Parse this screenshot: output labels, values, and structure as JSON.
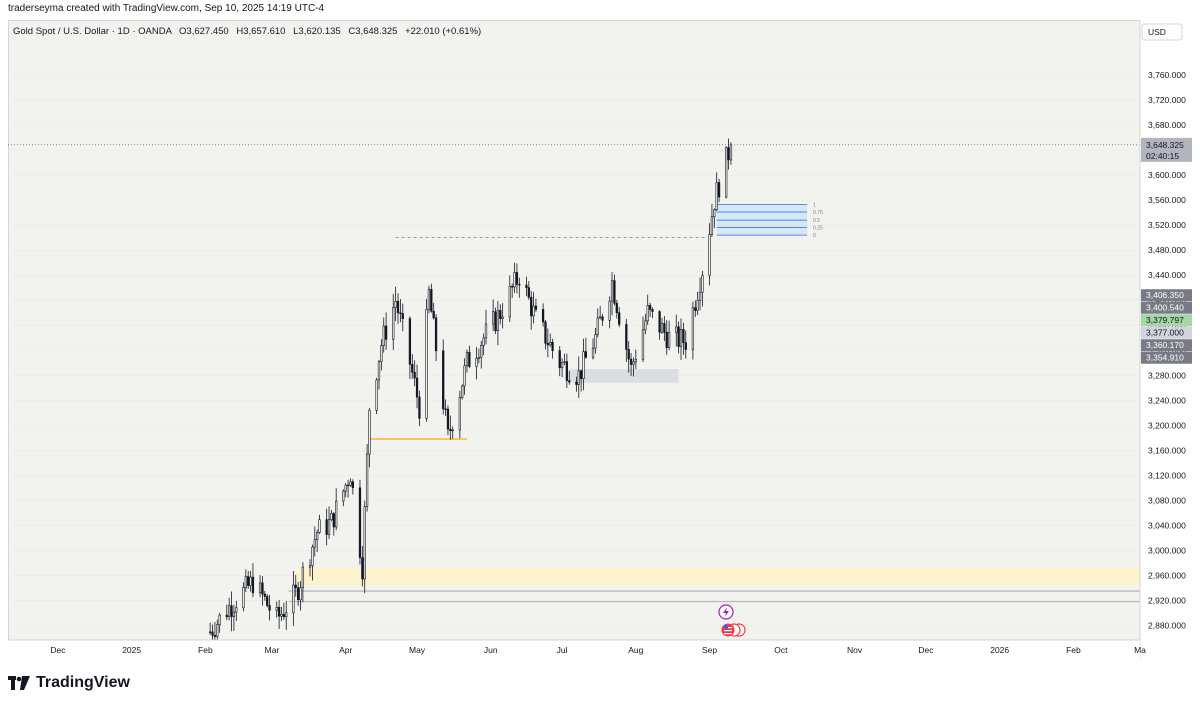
{
  "header": {
    "text": "traderseyma created with TradingView.com, Sep 10, 2025 14:19 UTC-4"
  },
  "legend": {
    "symbol": "Gold Spot / U.S. Dollar · 1D · OANDA",
    "o_label": "O",
    "o": "3,627.450",
    "h_label": "H",
    "h": "3,657.610",
    "l_label": "L",
    "l": "3,620.135",
    "c_label": "C",
    "c": "3,648.325",
    "change": "+22.010 (+0.61%)"
  },
  "currency": "USD",
  "brand": {
    "name": "TradingView"
  },
  "colors": {
    "up": "#131722",
    "down": "#131722",
    "bg": "#f2f3ee",
    "price_label": "#b2b5be",
    "gray_label": "#787b86",
    "green_label": "#a5d6a7",
    "zone": "#fff3c4",
    "fib": "#2962ff",
    "orange": "#ffb74d"
  },
  "chart_data": {
    "type": "candlestick",
    "title": "Gold Spot / U.S. Dollar · 1D · OANDA",
    "ylim": [
      2860,
      3800
    ],
    "y_ticks": [
      2880,
      2920,
      2960,
      3000,
      3040,
      3080,
      3120,
      3160,
      3200,
      3240,
      3280,
      3320,
      3360,
      3400,
      3440,
      3480,
      3520,
      3560,
      3600,
      3640,
      3680,
      3720,
      3760
    ],
    "y_tick_labels": [
      "2,880.000",
      "2,920.000",
      "2,960.000",
      "3,000.000",
      "3,040.000",
      "3,080.000",
      "3,120.000",
      "3,160.000",
      "3,200.000",
      "3,240.000",
      "3,280.000",
      "3,320.000",
      "3,360.000",
      "3,400.000",
      "3,440.000",
      "3,480.000",
      "3,520.000",
      "3,560.000",
      "3,600.000",
      "3,640.000",
      "3,680.000",
      "3,720.000",
      "3,760.000"
    ],
    "x_labels": [
      {
        "label": "Dec",
        "date": "2024-12-01"
      },
      {
        "label": "2025",
        "date": "2025-01-01"
      },
      {
        "label": "Feb",
        "date": "2025-02-01"
      },
      {
        "label": "Mar",
        "date": "2025-03-01"
      },
      {
        "label": "Apr",
        "date": "2025-04-01"
      },
      {
        "label": "May",
        "date": "2025-05-01"
      },
      {
        "label": "Jun",
        "date": "2025-06-01"
      },
      {
        "label": "Jul",
        "date": "2025-07-01"
      },
      {
        "label": "Aug",
        "date": "2025-08-01"
      },
      {
        "label": "Sep",
        "date": "2025-09-01"
      },
      {
        "label": "Oct",
        "date": "2025-10-01"
      },
      {
        "label": "Nov",
        "date": "2025-11-01"
      },
      {
        "label": "Dec",
        "date": "2025-12-01"
      },
      {
        "label": "2026",
        "date": "2026-01-01"
      },
      {
        "label": "Feb",
        "date": "2026-02-01"
      },
      {
        "label": "Ma",
        "date": "2026-03-01"
      }
    ],
    "xlim": [
      "2024-11-10",
      "2026-03-01"
    ],
    "waypoints": [
      [
        "2025-02-03",
        2870
      ],
      [
        "2025-02-10",
        2905
      ],
      [
        "2025-02-21",
        2950
      ],
      [
        "2025-03-03",
        2890
      ],
      [
        "2025-03-11",
        2930
      ],
      [
        "2025-03-20",
        3030
      ],
      [
        "2025-03-26",
        3045
      ],
      [
        "2025-04-03",
        3125
      ],
      [
        "2025-04-08",
        2975
      ],
      [
        "2025-04-11",
        3230
      ],
      [
        "2025-04-16",
        3330
      ],
      [
        "2025-04-22",
        3400
      ],
      [
        "2025-04-28",
        3300
      ],
      [
        "2025-05-02",
        3230
      ],
      [
        "2025-05-06",
        3410
      ],
      [
        "2025-05-14",
        3180
      ],
      [
        "2025-05-22",
        3300
      ],
      [
        "2025-06-05",
        3380
      ],
      [
        "2025-06-13",
        3440
      ],
      [
        "2025-06-20",
        3370
      ],
      [
        "2025-06-30",
        3300
      ],
      [
        "2025-07-08",
        3280
      ],
      [
        "2025-07-15",
        3340
      ],
      [
        "2025-07-22",
        3430
      ],
      [
        "2025-07-30",
        3290
      ],
      [
        "2025-08-06",
        3380
      ],
      [
        "2025-08-15",
        3340
      ],
      [
        "2025-08-22",
        3335
      ],
      [
        "2025-08-29",
        3450
      ],
      [
        "2025-09-03",
        3560
      ],
      [
        "2025-09-10",
        3648.325
      ]
    ],
    "last_price": {
      "value": 3648.325,
      "label": "3,648.325",
      "countdown": "02:40:15"
    },
    "price_labels": [
      {
        "value": 3406.35,
        "label": "3,406.350",
        "style": "dark"
      },
      {
        "value": 3400.54,
        "label": "3,400.540",
        "style": "dark"
      },
      {
        "value": 3379.797,
        "label": "3,379.797",
        "style": "green"
      },
      {
        "value": 3377.0,
        "label": "3,377.000",
        "style": "light"
      },
      {
        "value": 3360.17,
        "label": "3,360.170",
        "style": "dark"
      },
      {
        "value": 3354.91,
        "label": "3,354.910",
        "style": "dark"
      }
    ],
    "fib_levels": [
      {
        "label": "1",
        "value": 3553
      },
      {
        "label": "0.75",
        "value": 3541
      },
      {
        "label": "0.5",
        "value": 3528
      },
      {
        "label": "0.25",
        "value": 3516
      },
      {
        "label": "0",
        "value": 3504
      }
    ],
    "zones": {
      "demand_zone": {
        "from": 2945,
        "to": 2972,
        "start": "2025-03-11"
      },
      "gray_box": {
        "from": 3268,
        "to": 3290,
        "start": "2025-07-04",
        "end": "2025-08-19"
      },
      "orange_line": {
        "value": 3178,
        "start": "2025-04-11",
        "end": "2025-05-22"
      },
      "dashed_high": {
        "value": 3500,
        "start": "2025-04-22",
        "end": "2025-08-31"
      },
      "hlines": [
        2935,
        2918
      ]
    }
  }
}
